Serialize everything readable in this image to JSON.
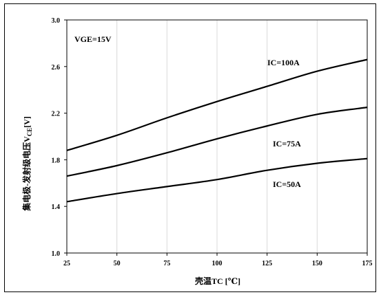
{
  "chart_data": {
    "type": "line",
    "title": "",
    "xlabel": "壳温TC [℃]",
    "ylabel": "集电极-发射级电压V",
    "ylabel_sub": "CE",
    "ylabel_unit": "[V]",
    "xlim": [
      25,
      175
    ],
    "ylim": [
      1.0,
      3.0
    ],
    "xticks": [
      25,
      50,
      75,
      100,
      125,
      150,
      175
    ],
    "yticks": [
      1.0,
      1.4,
      1.8,
      2.2,
      2.6,
      3.0
    ],
    "ytick_labels": [
      "1.0",
      "1.4",
      "1.8",
      "2.2",
      "2.6",
      "3.0"
    ],
    "grid": "vertical",
    "annotation": "VGE=15V",
    "series": [
      {
        "name": "IC=100A",
        "x": [
          25,
          50,
          75,
          100,
          125,
          150,
          175
        ],
        "y": [
          1.88,
          2.01,
          2.16,
          2.3,
          2.43,
          2.56,
          2.66
        ]
      },
      {
        "name": "IC=75A",
        "x": [
          25,
          50,
          75,
          100,
          125,
          150,
          175
        ],
        "y": [
          1.66,
          1.75,
          1.86,
          1.98,
          2.09,
          2.19,
          2.25
        ]
      },
      {
        "name": "IC=50A",
        "x": [
          25,
          50,
          75,
          100,
          125,
          150,
          175
        ],
        "y": [
          1.44,
          1.51,
          1.57,
          1.63,
          1.71,
          1.77,
          1.81
        ]
      }
    ]
  }
}
